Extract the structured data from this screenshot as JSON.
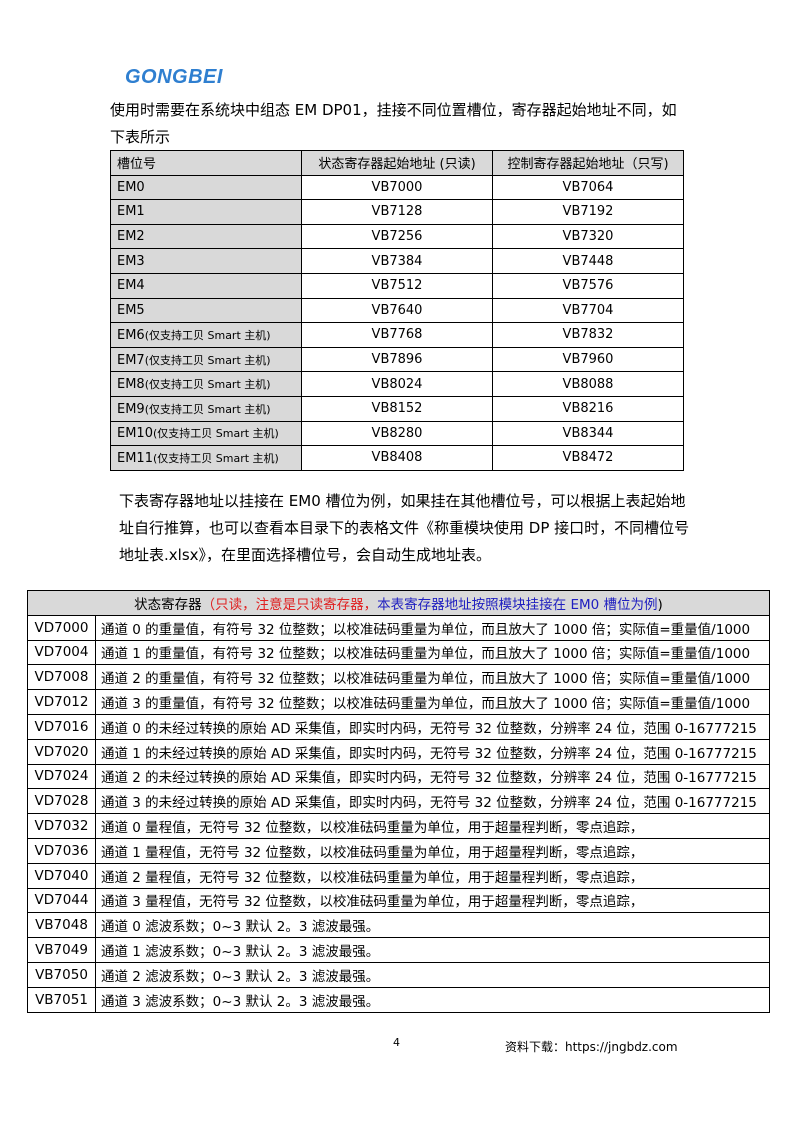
{
  "logo": "GONGBEI",
  "intro": "使用时需要在系统块中组态 EM DP01，挂接不同位置槽位，寄存器起始地址不同，如下表所示",
  "slot_table": {
    "headers": [
      "槽位号",
      "状态寄存器起始地址 (只读)",
      "控制寄存器起始地址（只写)"
    ],
    "rows": [
      {
        "slot": "EM0",
        "note": "",
        "status": "VB7000",
        "control": "VB7064"
      },
      {
        "slot": "EM1",
        "note": "",
        "status": "VB7128",
        "control": "VB7192"
      },
      {
        "slot": "EM2",
        "note": "",
        "status": "VB7256",
        "control": "VB7320"
      },
      {
        "slot": "EM3",
        "note": "",
        "status": "VB7384",
        "control": "VB7448"
      },
      {
        "slot": "EM4",
        "note": "",
        "status": "VB7512",
        "control": "VB7576"
      },
      {
        "slot": "EM5",
        "note": "",
        "status": "VB7640",
        "control": "VB7704"
      },
      {
        "slot": "EM6",
        "note": "(仅支持工贝 Smart 主机)",
        "status": "VB7768",
        "control": "VB7832"
      },
      {
        "slot": "EM7",
        "note": "(仅支持工贝 Smart 主机)",
        "status": "VB7896",
        "control": "VB7960"
      },
      {
        "slot": "EM8",
        "note": "(仅支持工贝 Smart 主机)",
        "status": "VB8024",
        "control": "VB8088"
      },
      {
        "slot": "EM9",
        "note": "(仅支持工贝 Smart 主机)",
        "status": "VB8152",
        "control": "VB8216"
      },
      {
        "slot": "EM10",
        "note": "(仅支持工贝 Smart 主机)",
        "status": "VB8280",
        "control": "VB8344"
      },
      {
        "slot": "EM11",
        "note": "(仅支持工贝 Smart 主机)",
        "status": "VB8408",
        "control": "VB8472"
      }
    ]
  },
  "paragraph": "下表寄存器地址以挂接在 EM0 槽位为例，如果挂在其他槽位号，可以根据上表起始地址自行推算，也可以查看本目录下的表格文件《称重模块使用 DP 接口时，不同槽位号地址表.xlsx》，在里面选择槽位号，会自动生成地址表。",
  "register_table": {
    "header": {
      "title": "状态寄存器",
      "open": "（",
      "red_note": "只读，注意是只读寄存器，",
      "blue_note": "本表寄存器地址按照模块挂接在 EM0 槽位为例",
      "close": ")"
    },
    "colors": {
      "red": "#e02020",
      "blue": "#2020c0"
    },
    "rows": [
      {
        "addr": "VD7000",
        "desc": "通道 0 的重量值，有符号 32 位整数；以校准砝码重量为单位，而且放大了 1000 倍；实际值=重量值/1000"
      },
      {
        "addr": "VD7004",
        "desc": "通道 1 的重量值，有符号 32 位整数；以校准砝码重量为单位，而且放大了 1000 倍；实际值=重量值/1000"
      },
      {
        "addr": "VD7008",
        "desc": "通道 2 的重量值，有符号 32 位整数；以校准砝码重量为单位，而且放大了 1000 倍；实际值=重量值/1000"
      },
      {
        "addr": "VD7012",
        "desc": "通道 3 的重量值，有符号 32 位整数；以校准砝码重量为单位，而且放大了 1000 倍；实际值=重量值/1000"
      },
      {
        "addr": "VD7016",
        "desc": "通道 0 的未经过转换的原始 AD 采集值，即实时内码，无符号 32 位整数，分辨率 24 位，范围 0-16777215"
      },
      {
        "addr": "VD7020",
        "desc": "通道 1 的未经过转换的原始 AD 采集值，即实时内码，无符号 32 位整数，分辨率 24 位，范围 0-16777215"
      },
      {
        "addr": "VD7024",
        "desc": "通道 2 的未经过转换的原始 AD 采集值，即实时内码，无符号 32 位整数，分辨率 24 位，范围 0-16777215"
      },
      {
        "addr": "VD7028",
        "desc": "通道 3 的未经过转换的原始 AD 采集值，即实时内码，无符号 32 位整数，分辨率 24 位，范围 0-16777215"
      },
      {
        "addr": "VD7032",
        "desc": "通道 0 量程值，无符号 32 位整数，以校准砝码重量为单位，用于超量程判断，零点追踪，"
      },
      {
        "addr": "VD7036",
        "desc": "通道 1 量程值，无符号 32 位整数，以校准砝码重量为单位，用于超量程判断，零点追踪，"
      },
      {
        "addr": "VD7040",
        "desc": "通道 2 量程值，无符号 32 位整数，以校准砝码重量为单位，用于超量程判断，零点追踪，"
      },
      {
        "addr": "VD7044",
        "desc": "通道 3 量程值，无符号 32 位整数，以校准砝码重量为单位，用于超量程判断，零点追踪，"
      },
      {
        "addr": "VB7048",
        "desc": "通道 0 滤波系数；0~3 默认 2。3 滤波最强。"
      },
      {
        "addr": "VB7049",
        "desc": "通道 1 滤波系数；0~3 默认 2。3 滤波最强。"
      },
      {
        "addr": "VB7050",
        "desc": "通道 2 滤波系数；0~3 默认 2。3 滤波最强。"
      },
      {
        "addr": "VB7051",
        "desc": "通道 3 滤波系数；0~3 默认 2。3 滤波最强。"
      }
    ]
  },
  "footer": {
    "page_number": "4",
    "download": "资料下载：https://jngbdz.com"
  }
}
